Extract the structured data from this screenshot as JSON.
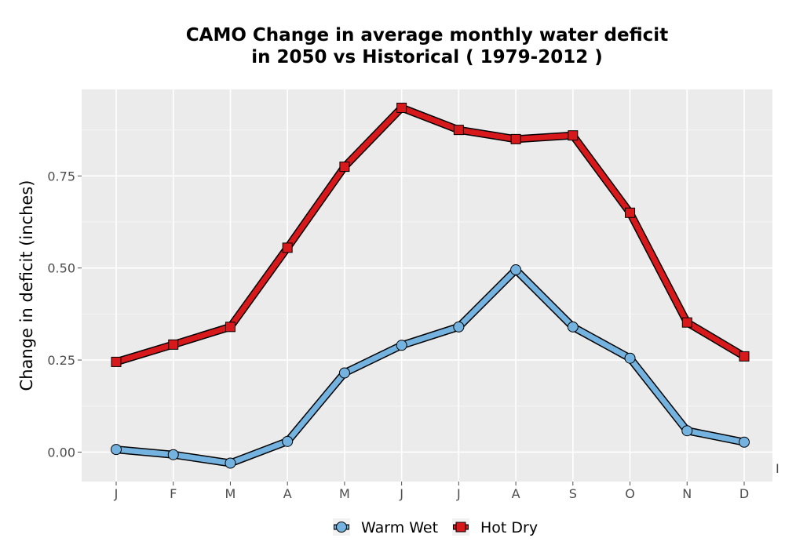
{
  "chart_data": {
    "type": "line",
    "title_line1": "CAMO  Change in average monthly water deficit",
    "title_line2": "in 2050 vs Historical ( 1979-2012 )",
    "ylabel": "Change in deficit (inches)",
    "xlabel": "",
    "categories": [
      "J",
      "F",
      "M",
      "A",
      "M",
      "J",
      "J",
      "A",
      "S",
      "O",
      "N",
      "D"
    ],
    "y_ticks": [
      0.0,
      0.25,
      0.5,
      0.75
    ],
    "y_tick_labels": [
      "0.00",
      "0.25",
      "0.50",
      "0.75"
    ],
    "ylim": [
      -0.08,
      0.985
    ],
    "grid": true,
    "legend_position": "bottom",
    "stray_label": "I",
    "series": [
      {
        "name": "Warm Wet",
        "marker": "circle",
        "color": "#74b3df",
        "values": [
          0.007,
          -0.007,
          -0.03,
          0.029,
          0.215,
          0.29,
          0.34,
          0.495,
          0.34,
          0.255,
          0.058,
          0.027
        ]
      },
      {
        "name": "Hot Dry",
        "marker": "square",
        "color": "#d7191c",
        "values": [
          0.245,
          0.292,
          0.34,
          0.555,
          0.775,
          0.935,
          0.875,
          0.85,
          0.86,
          0.65,
          0.352,
          0.26
        ]
      }
    ]
  }
}
